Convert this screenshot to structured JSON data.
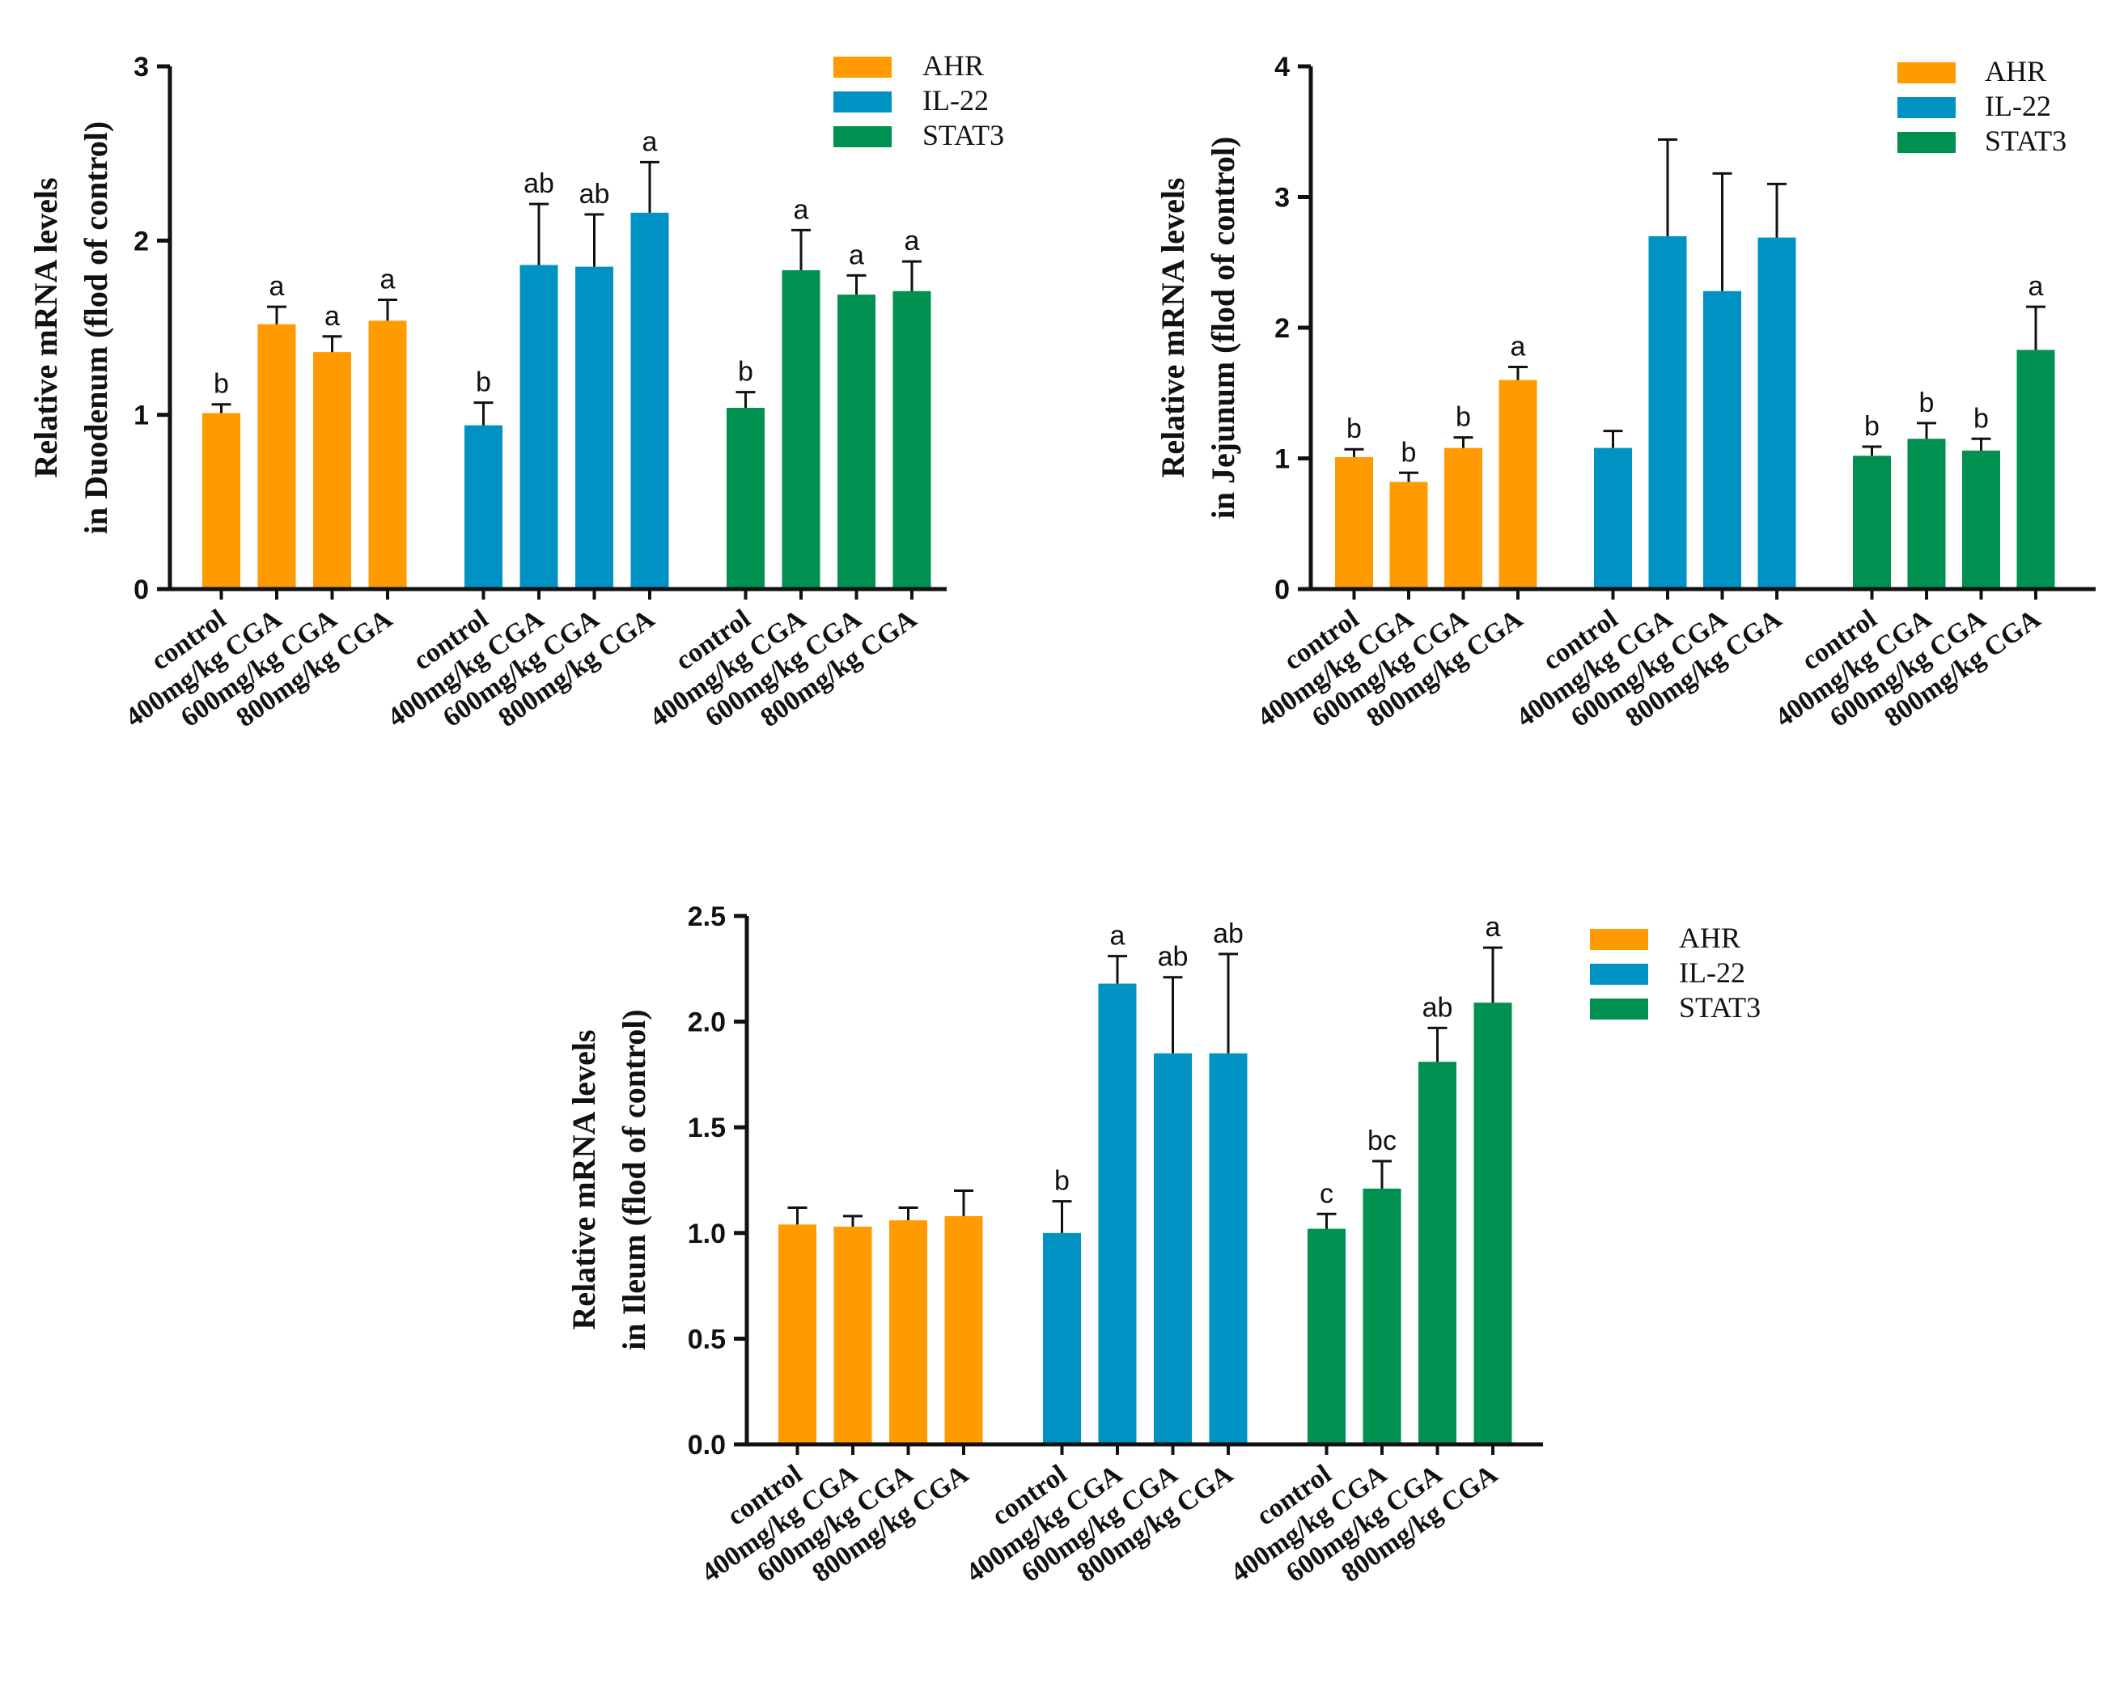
{
  "colors": {
    "AHR": "#FF9A00",
    "IL-22": "#0092C2",
    "STAT3": "#009150"
  },
  "legend_entries": [
    "AHR",
    "IL-22",
    "STAT3"
  ],
  "group_categories": [
    "control",
    "400mg/kg CGA",
    "600mg/kg CGA",
    "800mg/kg CGA"
  ],
  "chart_data": [
    {
      "type": "bar",
      "panel": "duodenum",
      "ylabel_line1": "Relative mRNA levels",
      "ylabel_line2": "in Duodenum (flod of control)",
      "ylim": [
        0,
        3
      ],
      "yticks": [
        0,
        1,
        2,
        3
      ],
      "ytick_labels": [
        "0",
        "1",
        "2",
        "3"
      ],
      "categories": [
        "control",
        "400mg/kg CGA",
        "600mg/kg CGA",
        "800mg/kg CGA"
      ],
      "legend": [
        "AHR",
        "IL-22",
        "STAT3"
      ],
      "series": [
        {
          "name": "AHR",
          "values": [
            1.01,
            1.52,
            1.36,
            1.54
          ],
          "errors": [
            0.05,
            0.1,
            0.09,
            0.12
          ],
          "labels": [
            "b",
            "a",
            "a",
            "a"
          ]
        },
        {
          "name": "IL-22",
          "values": [
            0.94,
            1.86,
            1.85,
            2.16
          ],
          "errors": [
            0.13,
            0.35,
            0.3,
            0.29
          ],
          "labels": [
            "b",
            "ab",
            "ab",
            "a"
          ]
        },
        {
          "name": "STAT3",
          "values": [
            1.04,
            1.83,
            1.69,
            1.71
          ],
          "errors": [
            0.09,
            0.23,
            0.11,
            0.17
          ],
          "labels": [
            "b",
            "a",
            "a",
            "a"
          ]
        }
      ]
    },
    {
      "type": "bar",
      "panel": "jejunum",
      "ylabel_line1": "Relative mRNA levels",
      "ylabel_line2": "in Jejunum (flod of control)",
      "ylim": [
        0,
        4
      ],
      "yticks": [
        0,
        1,
        2,
        3,
        4
      ],
      "ytick_labels": [
        "0",
        "1",
        "2",
        "3",
        "4"
      ],
      "categories": [
        "control",
        "400mg/kg CGA",
        "600mg/kg CGA",
        "800mg/kg CGA"
      ],
      "legend": [
        "AHR",
        "IL-22",
        "STAT3"
      ],
      "series": [
        {
          "name": "AHR",
          "values": [
            1.01,
            0.82,
            1.08,
            1.6
          ],
          "errors": [
            0.06,
            0.07,
            0.08,
            0.1
          ],
          "labels": [
            "b",
            "b",
            "b",
            "a"
          ]
        },
        {
          "name": "IL-22",
          "values": [
            1.08,
            2.7,
            2.28,
            2.69
          ],
          "errors": [
            0.13,
            0.74,
            0.9,
            0.41
          ],
          "labels": [
            "",
            "",
            "",
            ""
          ]
        },
        {
          "name": "STAT3",
          "values": [
            1.02,
            1.15,
            1.06,
            1.83
          ],
          "errors": [
            0.07,
            0.12,
            0.09,
            0.33
          ],
          "labels": [
            "b",
            "b",
            "b",
            "a"
          ]
        }
      ]
    },
    {
      "type": "bar",
      "panel": "ileum",
      "ylabel_line1": "Relative mRNA levels",
      "ylabel_line2": "in Ileum (flod of control)",
      "ylim": [
        0,
        2.5
      ],
      "yticks": [
        0,
        0.5,
        1,
        1.5,
        2,
        2.5
      ],
      "ytick_labels": [
        "0.0",
        "0.5",
        "1.0",
        "1.5",
        "2.0",
        "2.5"
      ],
      "categories": [
        "control",
        "400mg/kg CGA",
        "600mg/kg CGA",
        "800mg/kg CGA"
      ],
      "legend": [
        "AHR",
        "IL-22",
        "STAT3"
      ],
      "series": [
        {
          "name": "AHR",
          "values": [
            1.04,
            1.03,
            1.06,
            1.08
          ],
          "errors": [
            0.08,
            0.05,
            0.06,
            0.12
          ],
          "labels": [
            "",
            "",
            "",
            ""
          ]
        },
        {
          "name": "IL-22",
          "values": [
            1.0,
            2.18,
            1.85,
            1.85
          ],
          "errors": [
            0.15,
            0.13,
            0.36,
            0.47
          ],
          "labels": [
            "b",
            "a",
            "ab",
            "ab"
          ]
        },
        {
          "name": "STAT3",
          "values": [
            1.02,
            1.21,
            1.81,
            2.09
          ],
          "errors": [
            0.07,
            0.13,
            0.16,
            0.26
          ],
          "labels": [
            "c",
            "bc",
            "ab",
            "a"
          ]
        }
      ]
    }
  ]
}
